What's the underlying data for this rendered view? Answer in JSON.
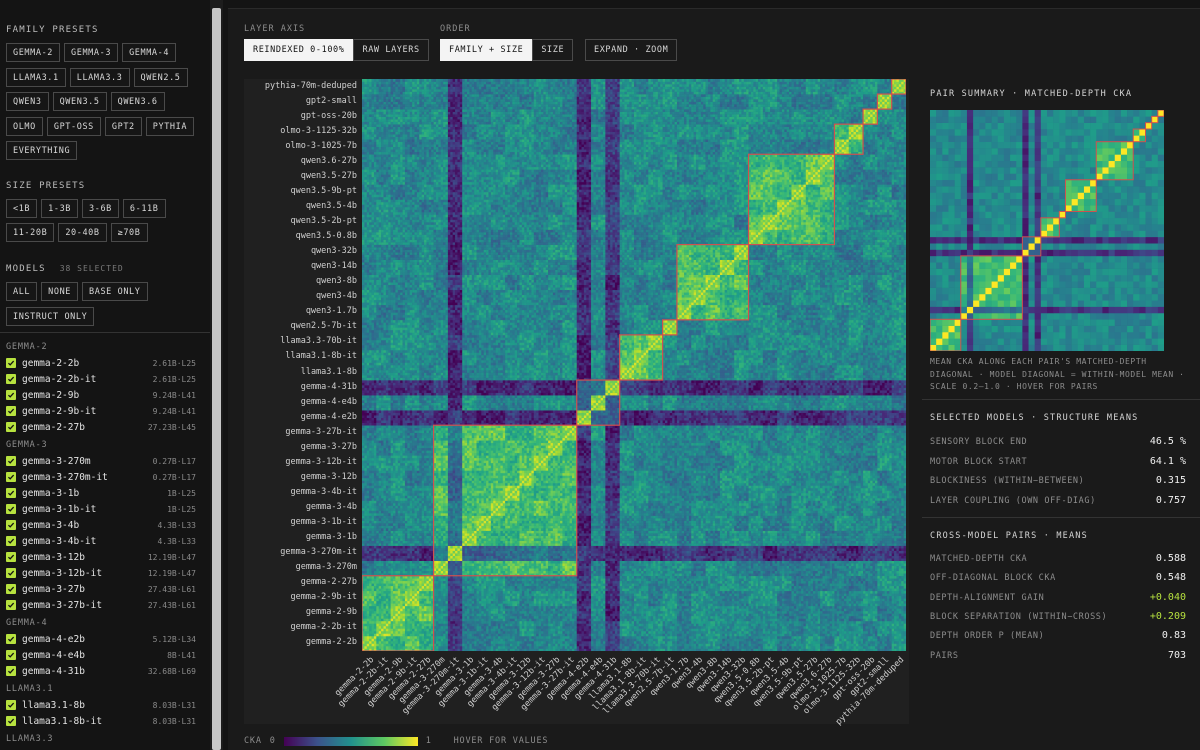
{
  "sidebar": {
    "family_presets": {
      "title": "FAMILY PRESETS",
      "rows": [
        [
          "GEMMA-2",
          "GEMMA-3",
          "GEMMA-4"
        ],
        [
          "LLAMA3.1",
          "LLAMA3.3",
          "QWEN2.5"
        ],
        [
          "QWEN3",
          "QWEN3.5",
          "QWEN3.6"
        ],
        [
          "OLMO",
          "GPT-OSS",
          "GPT2",
          "PYTHIA"
        ],
        [
          "EVERYTHING"
        ]
      ]
    },
    "size_presets": {
      "title": "SIZE PRESETS",
      "rows": [
        [
          "<1B",
          "1-3B",
          "3-6B",
          "6-11B"
        ],
        [
          "11-20B",
          "20-40B",
          "≥70B"
        ]
      ]
    },
    "models": {
      "title": "MODELS",
      "count": "38 SELECTED",
      "buttons": [
        [
          "ALL",
          "NONE",
          "BASE ONLY"
        ],
        [
          "INSTRUCT ONLY"
        ]
      ],
      "groups": [
        {
          "name": "GEMMA-2",
          "items": [
            {
              "name": "gemma-2-2b",
              "meta": "2.61B·L25"
            },
            {
              "name": "gemma-2-2b-it",
              "meta": "2.61B·L25"
            },
            {
              "name": "gemma-2-9b",
              "meta": "9.24B·L41"
            },
            {
              "name": "gemma-2-9b-it",
              "meta": "9.24B·L41"
            },
            {
              "name": "gemma-2-27b",
              "meta": "27.23B·L45"
            }
          ]
        },
        {
          "name": "GEMMA-3",
          "items": [
            {
              "name": "gemma-3-270m",
              "meta": "0.27B·L17"
            },
            {
              "name": "gemma-3-270m-it",
              "meta": "0.27B·L17"
            },
            {
              "name": "gemma-3-1b",
              "meta": "1B·L25"
            },
            {
              "name": "gemma-3-1b-it",
              "meta": "1B·L25"
            },
            {
              "name": "gemma-3-4b",
              "meta": "4.3B·L33"
            },
            {
              "name": "gemma-3-4b-it",
              "meta": "4.3B·L33"
            },
            {
              "name": "gemma-3-12b",
              "meta": "12.19B·L47"
            },
            {
              "name": "gemma-3-12b-it",
              "meta": "12.19B·L47"
            },
            {
              "name": "gemma-3-27b",
              "meta": "27.43B·L61"
            },
            {
              "name": "gemma-3-27b-it",
              "meta": "27.43B·L61"
            }
          ]
        },
        {
          "name": "GEMMA-4",
          "items": [
            {
              "name": "gemma-4-e2b",
              "meta": "5.12B·L34"
            },
            {
              "name": "gemma-4-e4b",
              "meta": "8B·L41"
            },
            {
              "name": "gemma-4-31b",
              "meta": "32.68B·L69"
            }
          ]
        },
        {
          "name": "LLAMA3.1",
          "items": [
            {
              "name": "llama3.1-8b",
              "meta": "8.03B·L31"
            },
            {
              "name": "llama3.1-8b-it",
              "meta": "8.03B·L31"
            }
          ]
        },
        {
          "name": "LLAMA3.3",
          "items": []
        }
      ]
    }
  },
  "controls": {
    "layer_axis": {
      "label": "LAYER AXIS",
      "options": [
        "REINDEXED 0-100%",
        "RAW LAYERS"
      ],
      "active": 0
    },
    "order": {
      "label": "ORDER",
      "options": [
        "FAMILY + SIZE",
        "SIZE"
      ],
      "active": 0
    },
    "expand_label": "EXPAND · ZOOM"
  },
  "matrix": {
    "y_labels": [
      "pythia-70m-deduped",
      "gpt2-small",
      "gpt-oss-20b",
      "olmo-3-1125-32b",
      "olmo-3-1025-7b",
      "qwen3.6-27b",
      "qwen3.5-27b",
      "qwen3.5-9b-pt",
      "qwen3.5-4b",
      "qwen3.5-2b-pt",
      "qwen3.5-0.8b",
      "qwen3-32b",
      "qwen3-14b",
      "qwen3-8b",
      "qwen3-4b",
      "qwen3-1.7b",
      "qwen2.5-7b-it",
      "llama3.3-70b-it",
      "llama3.1-8b-it",
      "llama3.1-8b",
      "gemma-4-31b",
      "gemma-4-e4b",
      "gemma-4-e2b",
      "gemma-3-27b-it",
      "gemma-3-27b",
      "gemma-3-12b-it",
      "gemma-3-12b",
      "gemma-3-4b-it",
      "gemma-3-4b",
      "gemma-3-1b-it",
      "gemma-3-1b",
      "gemma-3-270m-it",
      "gemma-3-270m",
      "gemma-2-27b",
      "gemma-2-9b-it",
      "gemma-2-9b",
      "gemma-2-2b-it",
      "gemma-2-2b"
    ],
    "x_labels": [
      "gemma-2-2b",
      "gemma-2-2b-it",
      "gemma-2-9b",
      "gemma-2-9b-it",
      "gemma-2-27b",
      "gemma-3-270m",
      "gemma-3-270m-it",
      "gemma-3-1b",
      "gemma-3-1b-it",
      "gemma-3-4b",
      "gemma-3-4b-it",
      "gemma-3-12b",
      "gemma-3-12b-it",
      "gemma-3-27b",
      "gemma-3-27b-it",
      "gemma-4-e2b",
      "gemma-4-e4b",
      "gemma-4-31b",
      "llama3.1-8b",
      "llama3.1-8b-it",
      "llama3.3-70b-it",
      "qwen2.5-7b-it",
      "qwen3-1.7b",
      "qwen3-4b",
      "qwen3-8b",
      "qwen3-14b",
      "qwen3-32b",
      "qwen3.5-0.8b",
      "qwen3.5-2b-pt",
      "qwen3.5-4b",
      "qwen3.5-9b-pt",
      "qwen3.5-27b",
      "qwen3.6-27b",
      "olmo-3-1025-7b",
      "olmo-3-1125-32b",
      "gpt-oss-20b",
      "gpt2-small",
      "pythia-70m-deduped"
    ],
    "legend": {
      "label": "CKA",
      "min": "0",
      "max": "1",
      "hint": "HOVER FOR VALUES"
    },
    "colors": {
      "low": "#440154",
      "mid": "#21918c",
      "high": "#fde725",
      "family_box": "#d0504f"
    }
  },
  "pair_summary": {
    "title": "PAIR SUMMARY · MATCHED-DEPTH CKA",
    "note": "MEAN CKA ALONG EACH PAIR'S MATCHED-DEPTH DIAGONAL · MODEL DIAGONAL = WITHIN-MODEL MEAN · SCALE 0.2–1.0 · HOVER FOR PAIRS"
  },
  "structure_means": {
    "title": "SELECTED MODELS · STRUCTURE MEANS",
    "stats": [
      {
        "k": "SENSORY BLOCK END",
        "v": "46.5 %"
      },
      {
        "k": "MOTOR BLOCK START",
        "v": "64.1 %"
      },
      {
        "k": "BLOCKINESS (WITHIN−BETWEEN)",
        "v": "0.315"
      },
      {
        "k": "LAYER COUPLING (OWN OFF-DIAG)",
        "v": "0.757"
      }
    ]
  },
  "cross_model": {
    "title": "CROSS-MODEL PAIRS · MEANS",
    "stats": [
      {
        "k": "MATCHED-DEPTH CKA",
        "v": "0.588"
      },
      {
        "k": "OFF-DIAGONAL BLOCK CKA",
        "v": "0.548"
      },
      {
        "k": "DEPTH-ALIGNMENT GAIN",
        "v": "+0.040"
      },
      {
        "k": "BLOCK SEPARATION (WITHIN−CROSS)",
        "v": "+0.209"
      },
      {
        "k": "DEPTH ORDER P (MEAN)",
        "v": "0.83"
      },
      {
        "k": "PAIRS",
        "v": "703"
      }
    ]
  }
}
